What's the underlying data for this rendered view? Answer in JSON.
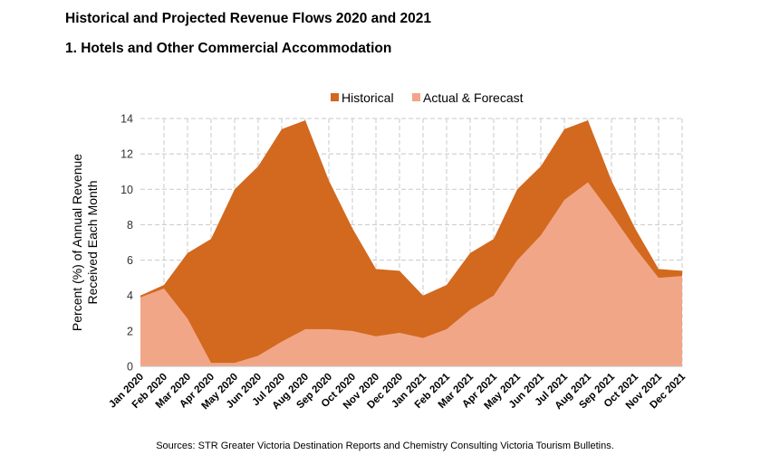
{
  "header": {
    "title": "Historical and Projected Revenue Flows 2020 and 2021",
    "subtitle": "1.  Hotels and Other Commercial Accommodation"
  },
  "footer": {
    "source": "Sources: STR Greater Victoria Destination Reports and Chemistry Consulting Victoria Tourism Bulletins."
  },
  "chart_data": {
    "type": "area",
    "title": "Historical and Projected Revenue Flows 2020 and 2021",
    "subtitle": "1.  Hotels and Other Commercial Accommodation",
    "ylabel_lines": [
      "Percent (%) of Annual Revenue",
      "Received Each Month"
    ],
    "xlabel": "",
    "ylim": [
      0,
      14
    ],
    "yticks": [
      "0",
      "2",
      "4",
      "6",
      "8",
      "10",
      "12",
      "14"
    ],
    "grid": true,
    "legend_position": "top-center",
    "categories": [
      "Jan 2020",
      "Feb 2020",
      "Mar 2020",
      "Apr 2020",
      "May 2020",
      "Jun 2020",
      "Jul 2020",
      "Aug 2020",
      "Sep 2020",
      "Oct 2020",
      "Nov 2020",
      "Dec 2020",
      "Jan 2021",
      "Feb 2021",
      "Mar 2021",
      "Apr 2021",
      "May 2021",
      "Jun 2021",
      "Jul 2021",
      "Aug 2021",
      "Sep 2021",
      "Oct 2021",
      "Nov 2021",
      "Dec 2021"
    ],
    "series": [
      {
        "name": "Historical",
        "color": "#d2691e",
        "values": [
          4.0,
          4.6,
          6.4,
          7.2,
          10.0,
          11.3,
          13.4,
          13.9,
          10.5,
          7.8,
          5.5,
          5.4,
          4.0,
          4.6,
          6.4,
          7.2,
          10.0,
          11.3,
          13.4,
          13.9,
          10.5,
          7.8,
          5.5,
          5.4
        ]
      },
      {
        "name": "Actual & Forecast",
        "color": "#f1a688",
        "values": [
          3.9,
          4.4,
          2.7,
          0.2,
          0.2,
          0.6,
          1.4,
          2.1,
          2.1,
          2.0,
          1.7,
          1.9,
          1.6,
          2.1,
          3.2,
          4.0,
          6.0,
          7.4,
          9.4,
          10.4,
          8.6,
          6.7,
          5.0,
          5.1
        ]
      }
    ]
  }
}
